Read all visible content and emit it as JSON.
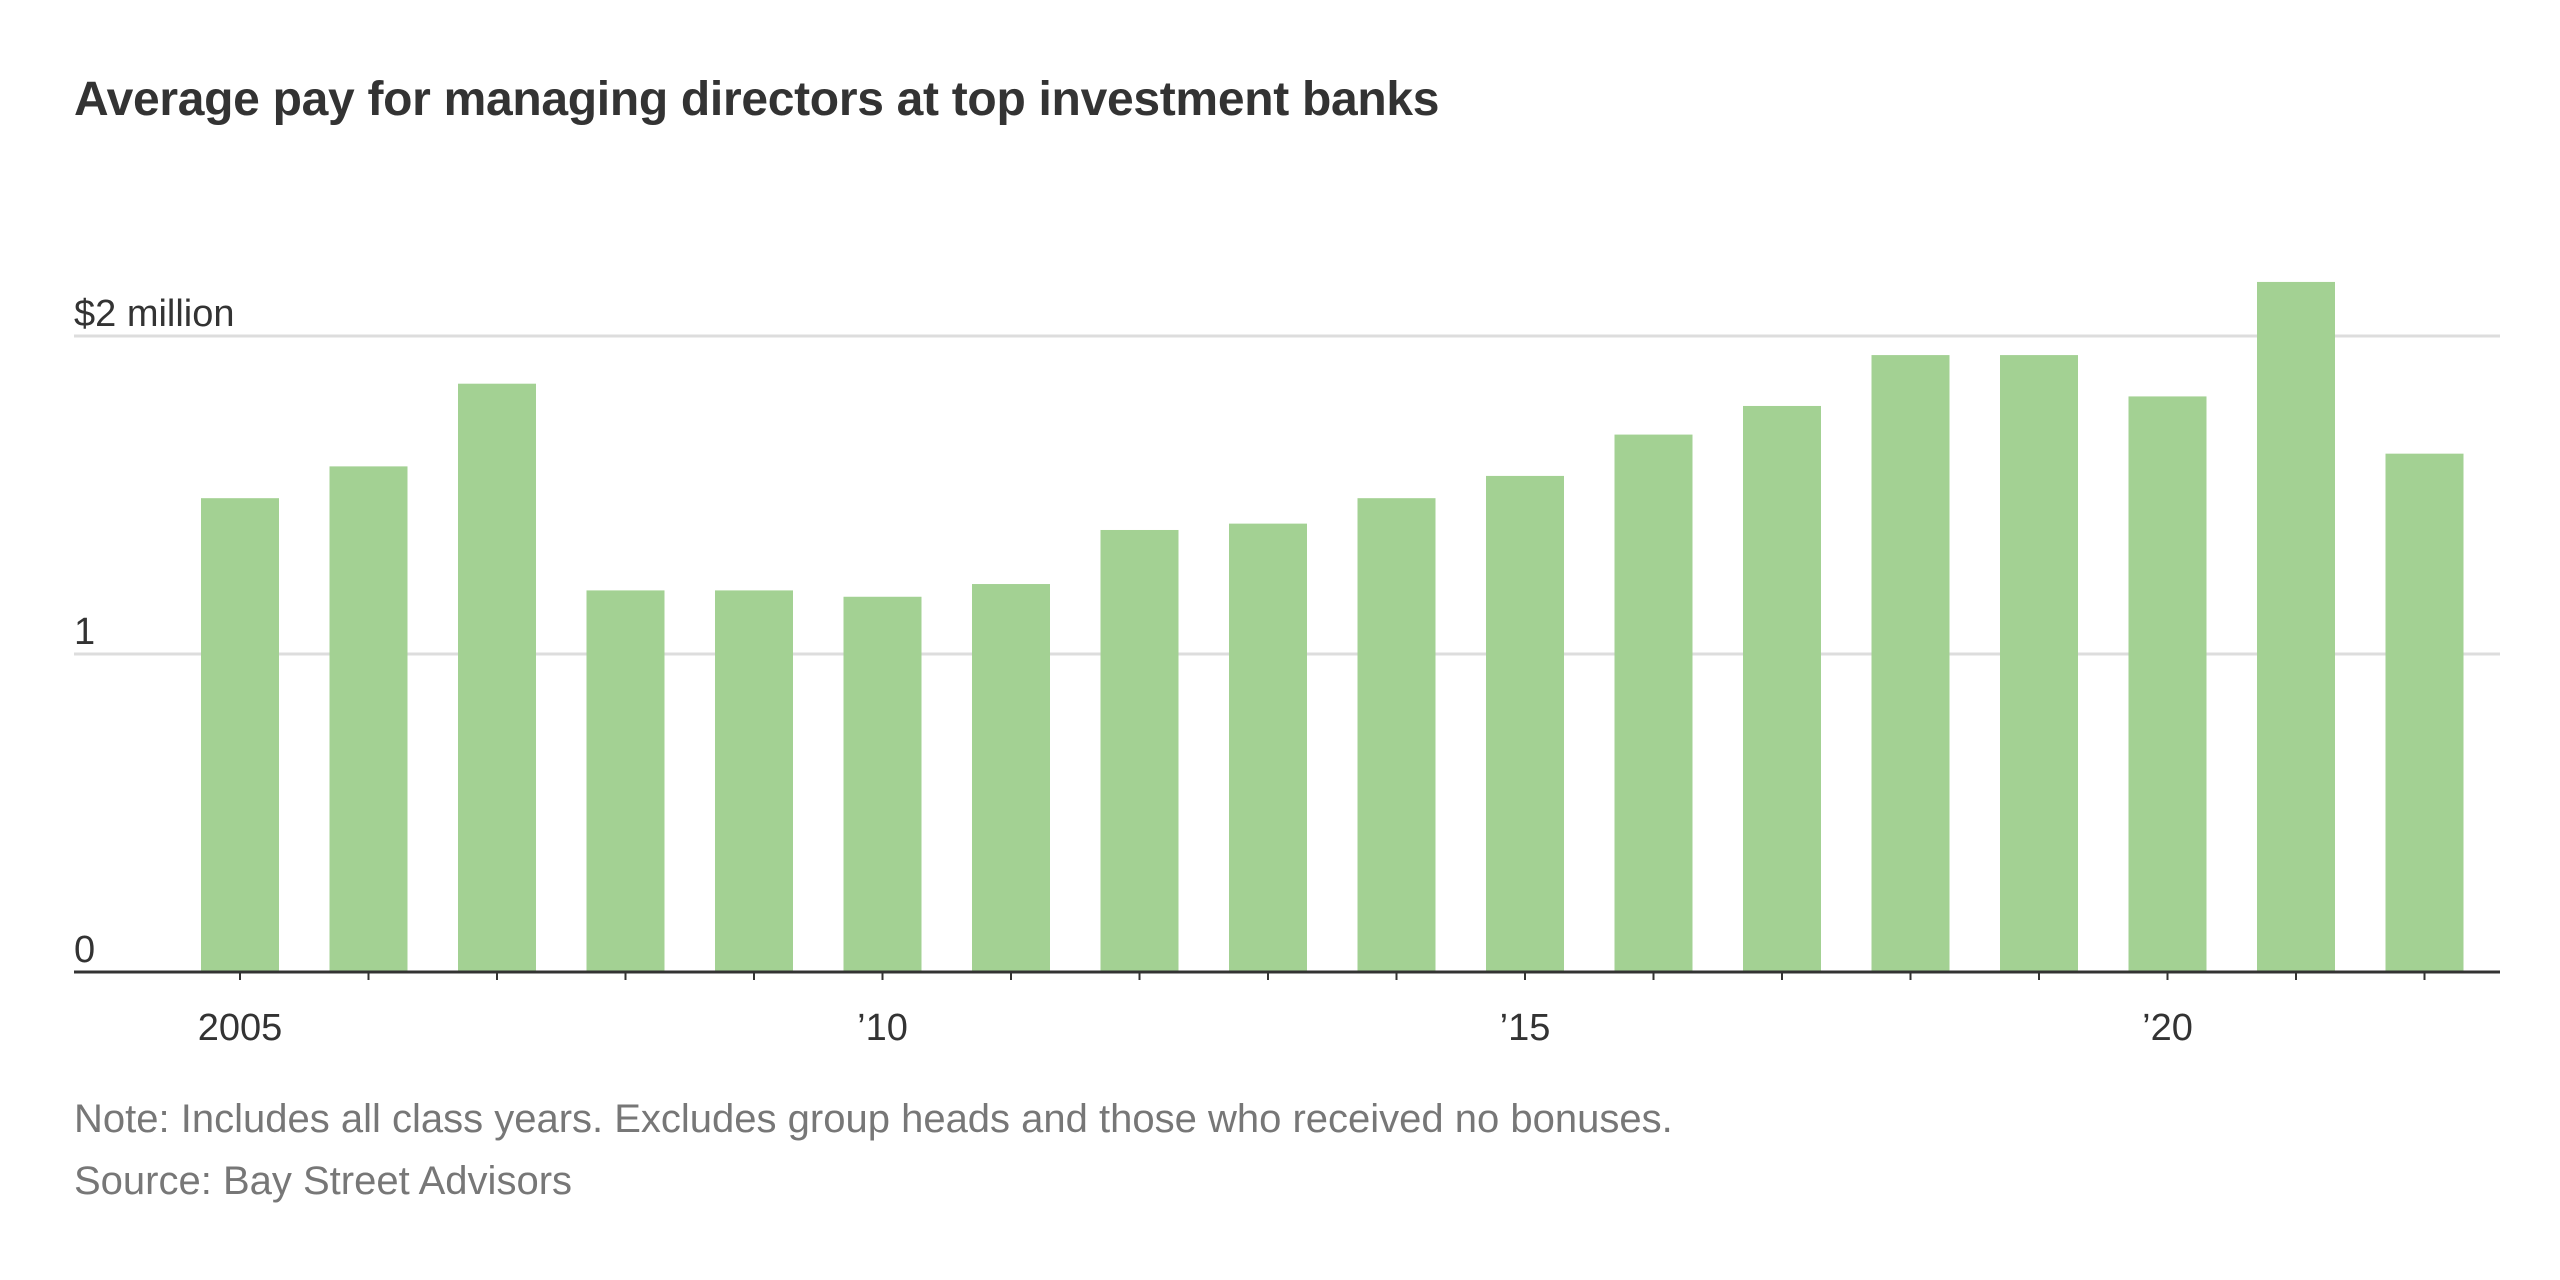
{
  "chart_data": {
    "type": "bar",
    "title": "Average pay for managing directors at top investment banks",
    "categories": [
      "2005",
      "2006",
      "2007",
      "2008",
      "2009",
      "2010",
      "2011",
      "2012",
      "2013",
      "2014",
      "2015",
      "2016",
      "2017",
      "2018",
      "2019",
      "2020",
      "2021",
      "2022"
    ],
    "values": [
      1.49,
      1.59,
      1.85,
      1.2,
      1.2,
      1.18,
      1.22,
      1.39,
      1.41,
      1.49,
      1.56,
      1.69,
      1.78,
      1.94,
      1.94,
      1.81,
      2.17,
      1.63
    ],
    "y_ticks": [
      {
        "value": 0,
        "label": "0"
      },
      {
        "value": 1,
        "label": "1"
      },
      {
        "value": 2,
        "label": "$2 million"
      }
    ],
    "x_tick_labels": [
      {
        "category": "2005",
        "label": "2005"
      },
      {
        "category": "2010",
        "label": "’10"
      },
      {
        "category": "2015",
        "label": "’15"
      },
      {
        "category": "2020",
        "label": "’20"
      }
    ],
    "ylim": [
      0,
      2.2
    ],
    "grid": true,
    "bar_color": "#a3d193",
    "note": "Note: Includes all class years. Excludes group heads and those who received no bonuses.",
    "source": "Source: Bay Street Advisors"
  }
}
